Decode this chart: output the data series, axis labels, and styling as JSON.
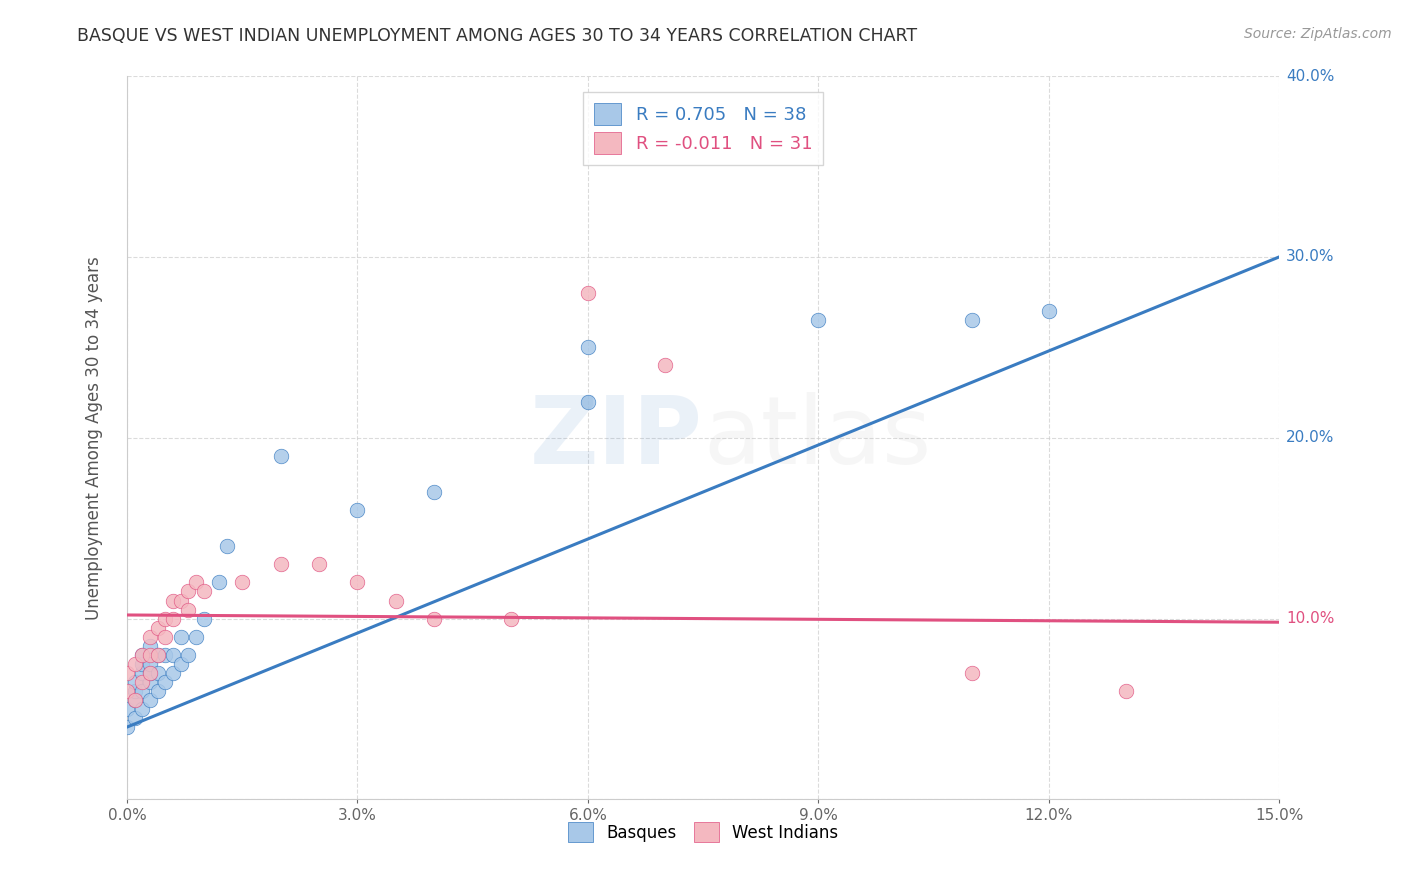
{
  "title": "BASQUE VS WEST INDIAN UNEMPLOYMENT AMONG AGES 30 TO 34 YEARS CORRELATION CHART",
  "source": "Source: ZipAtlas.com",
  "ylabel": "Unemployment Among Ages 30 to 34 years",
  "xlim": [
    0.0,
    0.15
  ],
  "ylim": [
    0.0,
    0.4
  ],
  "xticks": [
    0.0,
    0.03,
    0.06,
    0.09,
    0.12,
    0.15
  ],
  "yticks": [
    0.0,
    0.1,
    0.2,
    0.3,
    0.4
  ],
  "basque_R": 0.705,
  "basque_N": 38,
  "westindian_R": -0.011,
  "westindian_N": 31,
  "basque_color": "#a8c8e8",
  "westindian_color": "#f4b8c0",
  "basque_line_color": "#3a7cc1",
  "westindian_line_color": "#e05080",
  "right_ytick_colors": [
    "#3a7cc1",
    "#3a7cc1",
    "#3a7cc1",
    "#e05080",
    "#3a7cc1"
  ],
  "watermark_zip_color": "#3a7cc1",
  "watermark_atlas_color": "#aaaaaa",
  "background_color": "#ffffff",
  "grid_color": "#cccccc",
  "basque_x": [
    0.0,
    0.0,
    0.001,
    0.001,
    0.001,
    0.001,
    0.002,
    0.002,
    0.002,
    0.002,
    0.002,
    0.003,
    0.003,
    0.003,
    0.003,
    0.003,
    0.004,
    0.004,
    0.004,
    0.005,
    0.005,
    0.006,
    0.006,
    0.007,
    0.007,
    0.008,
    0.009,
    0.01,
    0.012,
    0.013,
    0.02,
    0.03,
    0.04,
    0.06,
    0.06,
    0.09,
    0.11,
    0.12
  ],
  "basque_y": [
    0.04,
    0.05,
    0.045,
    0.055,
    0.06,
    0.065,
    0.05,
    0.06,
    0.07,
    0.075,
    0.08,
    0.055,
    0.065,
    0.07,
    0.075,
    0.085,
    0.06,
    0.07,
    0.08,
    0.065,
    0.08,
    0.07,
    0.08,
    0.075,
    0.09,
    0.08,
    0.09,
    0.1,
    0.12,
    0.14,
    0.19,
    0.16,
    0.17,
    0.22,
    0.25,
    0.265,
    0.265,
    0.27
  ],
  "westindian_x": [
    0.0,
    0.0,
    0.001,
    0.001,
    0.002,
    0.002,
    0.003,
    0.003,
    0.003,
    0.004,
    0.004,
    0.005,
    0.005,
    0.006,
    0.006,
    0.007,
    0.008,
    0.008,
    0.009,
    0.01,
    0.015,
    0.02,
    0.025,
    0.03,
    0.035,
    0.04,
    0.05,
    0.06,
    0.07,
    0.11,
    0.13
  ],
  "westindian_y": [
    0.06,
    0.07,
    0.055,
    0.075,
    0.065,
    0.08,
    0.07,
    0.08,
    0.09,
    0.08,
    0.095,
    0.09,
    0.1,
    0.1,
    0.11,
    0.11,
    0.105,
    0.115,
    0.12,
    0.115,
    0.12,
    0.13,
    0.13,
    0.12,
    0.11,
    0.1,
    0.1,
    0.28,
    0.24,
    0.07,
    0.06
  ],
  "basque_line_x": [
    0.0,
    0.15
  ],
  "basque_line_y": [
    0.04,
    0.3
  ],
  "westindian_line_x": [
    0.0,
    0.15
  ],
  "westindian_line_y": [
    0.102,
    0.098
  ]
}
